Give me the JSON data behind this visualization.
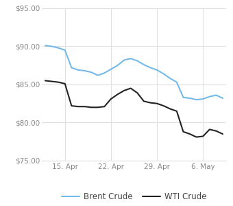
{
  "brent_x": [
    0,
    1,
    2,
    3,
    4,
    5,
    6,
    7,
    8,
    9,
    10,
    11,
    12,
    13,
    14,
    15,
    16,
    17,
    18,
    19,
    20,
    21,
    22,
    23,
    24,
    25,
    26,
    27
  ],
  "brent_y": [
    90.1,
    90.0,
    89.8,
    89.5,
    87.2,
    86.9,
    86.8,
    86.6,
    86.2,
    86.5,
    87.0,
    87.5,
    88.2,
    88.4,
    88.1,
    87.6,
    87.2,
    86.9,
    86.4,
    85.8,
    85.3,
    83.3,
    83.2,
    83.0,
    83.1,
    83.4,
    83.6,
    83.2
  ],
  "wti_x": [
    0,
    1,
    2,
    3,
    4,
    5,
    6,
    7,
    8,
    9,
    10,
    11,
    12,
    13,
    14,
    15,
    16,
    17,
    18,
    19,
    20,
    21,
    22,
    23,
    24,
    25,
    26,
    27
  ],
  "wti_y": [
    85.5,
    85.4,
    85.3,
    85.1,
    82.2,
    82.1,
    82.1,
    82.0,
    82.0,
    82.1,
    83.1,
    83.7,
    84.2,
    84.5,
    83.9,
    82.8,
    82.6,
    82.5,
    82.2,
    81.8,
    81.5,
    78.8,
    78.5,
    78.1,
    78.2,
    79.1,
    78.9,
    78.5
  ],
  "xtick_positions": [
    3,
    10,
    17,
    24
  ],
  "xtick_labels": [
    "15. Apr",
    "22. Apr",
    "29. Apr",
    "6. May"
  ],
  "ylim": [
    75.0,
    95.0
  ],
  "ytick_values": [
    75.0,
    80.0,
    85.0,
    90.0,
    95.0
  ],
  "brent_color": "#74b9e8",
  "wti_color": "#222222",
  "grid_color": "#e0e0e0",
  "bg_color": "#ffffff",
  "legend_brent": "Brent Crude",
  "legend_wti": "WTI Crude",
  "tick_color": "#888888",
  "linewidth": 1.5
}
